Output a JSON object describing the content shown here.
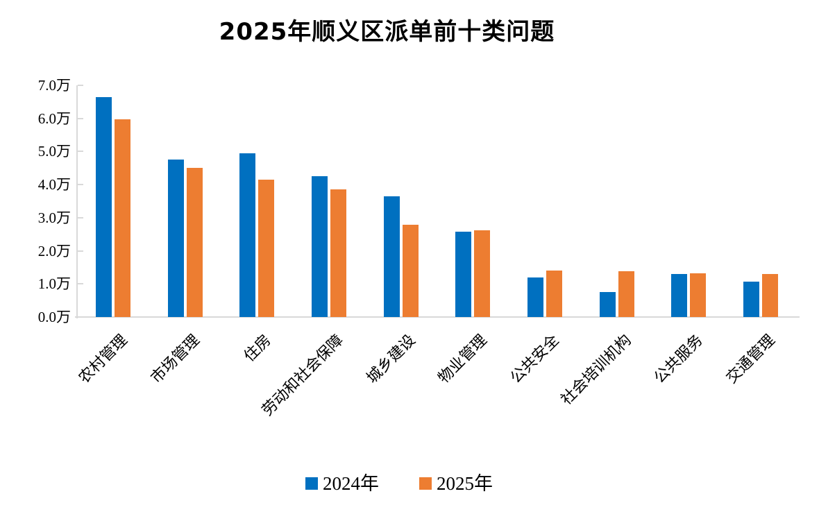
{
  "title": "2025年顺义区派单前十类问题",
  "colors": {
    "series_2024": "#0070C0",
    "series_2025": "#ED7D31",
    "axis": "#D9D9D9",
    "text": "#000000",
    "background": "#FFFFFF"
  },
  "chart_data": {
    "type": "bar",
    "title": "2025年顺义区派单前十类问题",
    "categories": [
      "农村管理",
      "市场管理",
      "住房",
      "劳动和社会保障",
      "城乡建设",
      "物业管理",
      "公共安全",
      "社会培训机构",
      "公共服务",
      "交通管理"
    ],
    "series": [
      {
        "name": "2024年",
        "color": "#0070C0",
        "values": [
          6.65,
          4.75,
          4.95,
          4.26,
          3.65,
          2.58,
          1.19,
          0.76,
          1.29,
          1.07
        ]
      },
      {
        "name": "2025年",
        "color": "#ED7D31",
        "values": [
          5.97,
          4.51,
          4.14,
          3.85,
          2.78,
          2.63,
          1.4,
          1.38,
          1.31,
          1.3
        ]
      }
    ],
    "xlabel": "",
    "ylabel": "",
    "y_unit": "万",
    "ylim": [
      0,
      7
    ],
    "y_tick_labels": [
      "0.0万",
      "1.0万",
      "2.0万",
      "3.0万",
      "4.0万",
      "5.0万",
      "6.0万",
      "7.0万"
    ],
    "grid": false,
    "legend_position": "bottom",
    "category_label_rotation_deg": -45
  },
  "legend": {
    "items": [
      {
        "label": "2024年",
        "color": "#0070C0"
      },
      {
        "label": "2025年",
        "color": "#ED7D31"
      }
    ]
  }
}
